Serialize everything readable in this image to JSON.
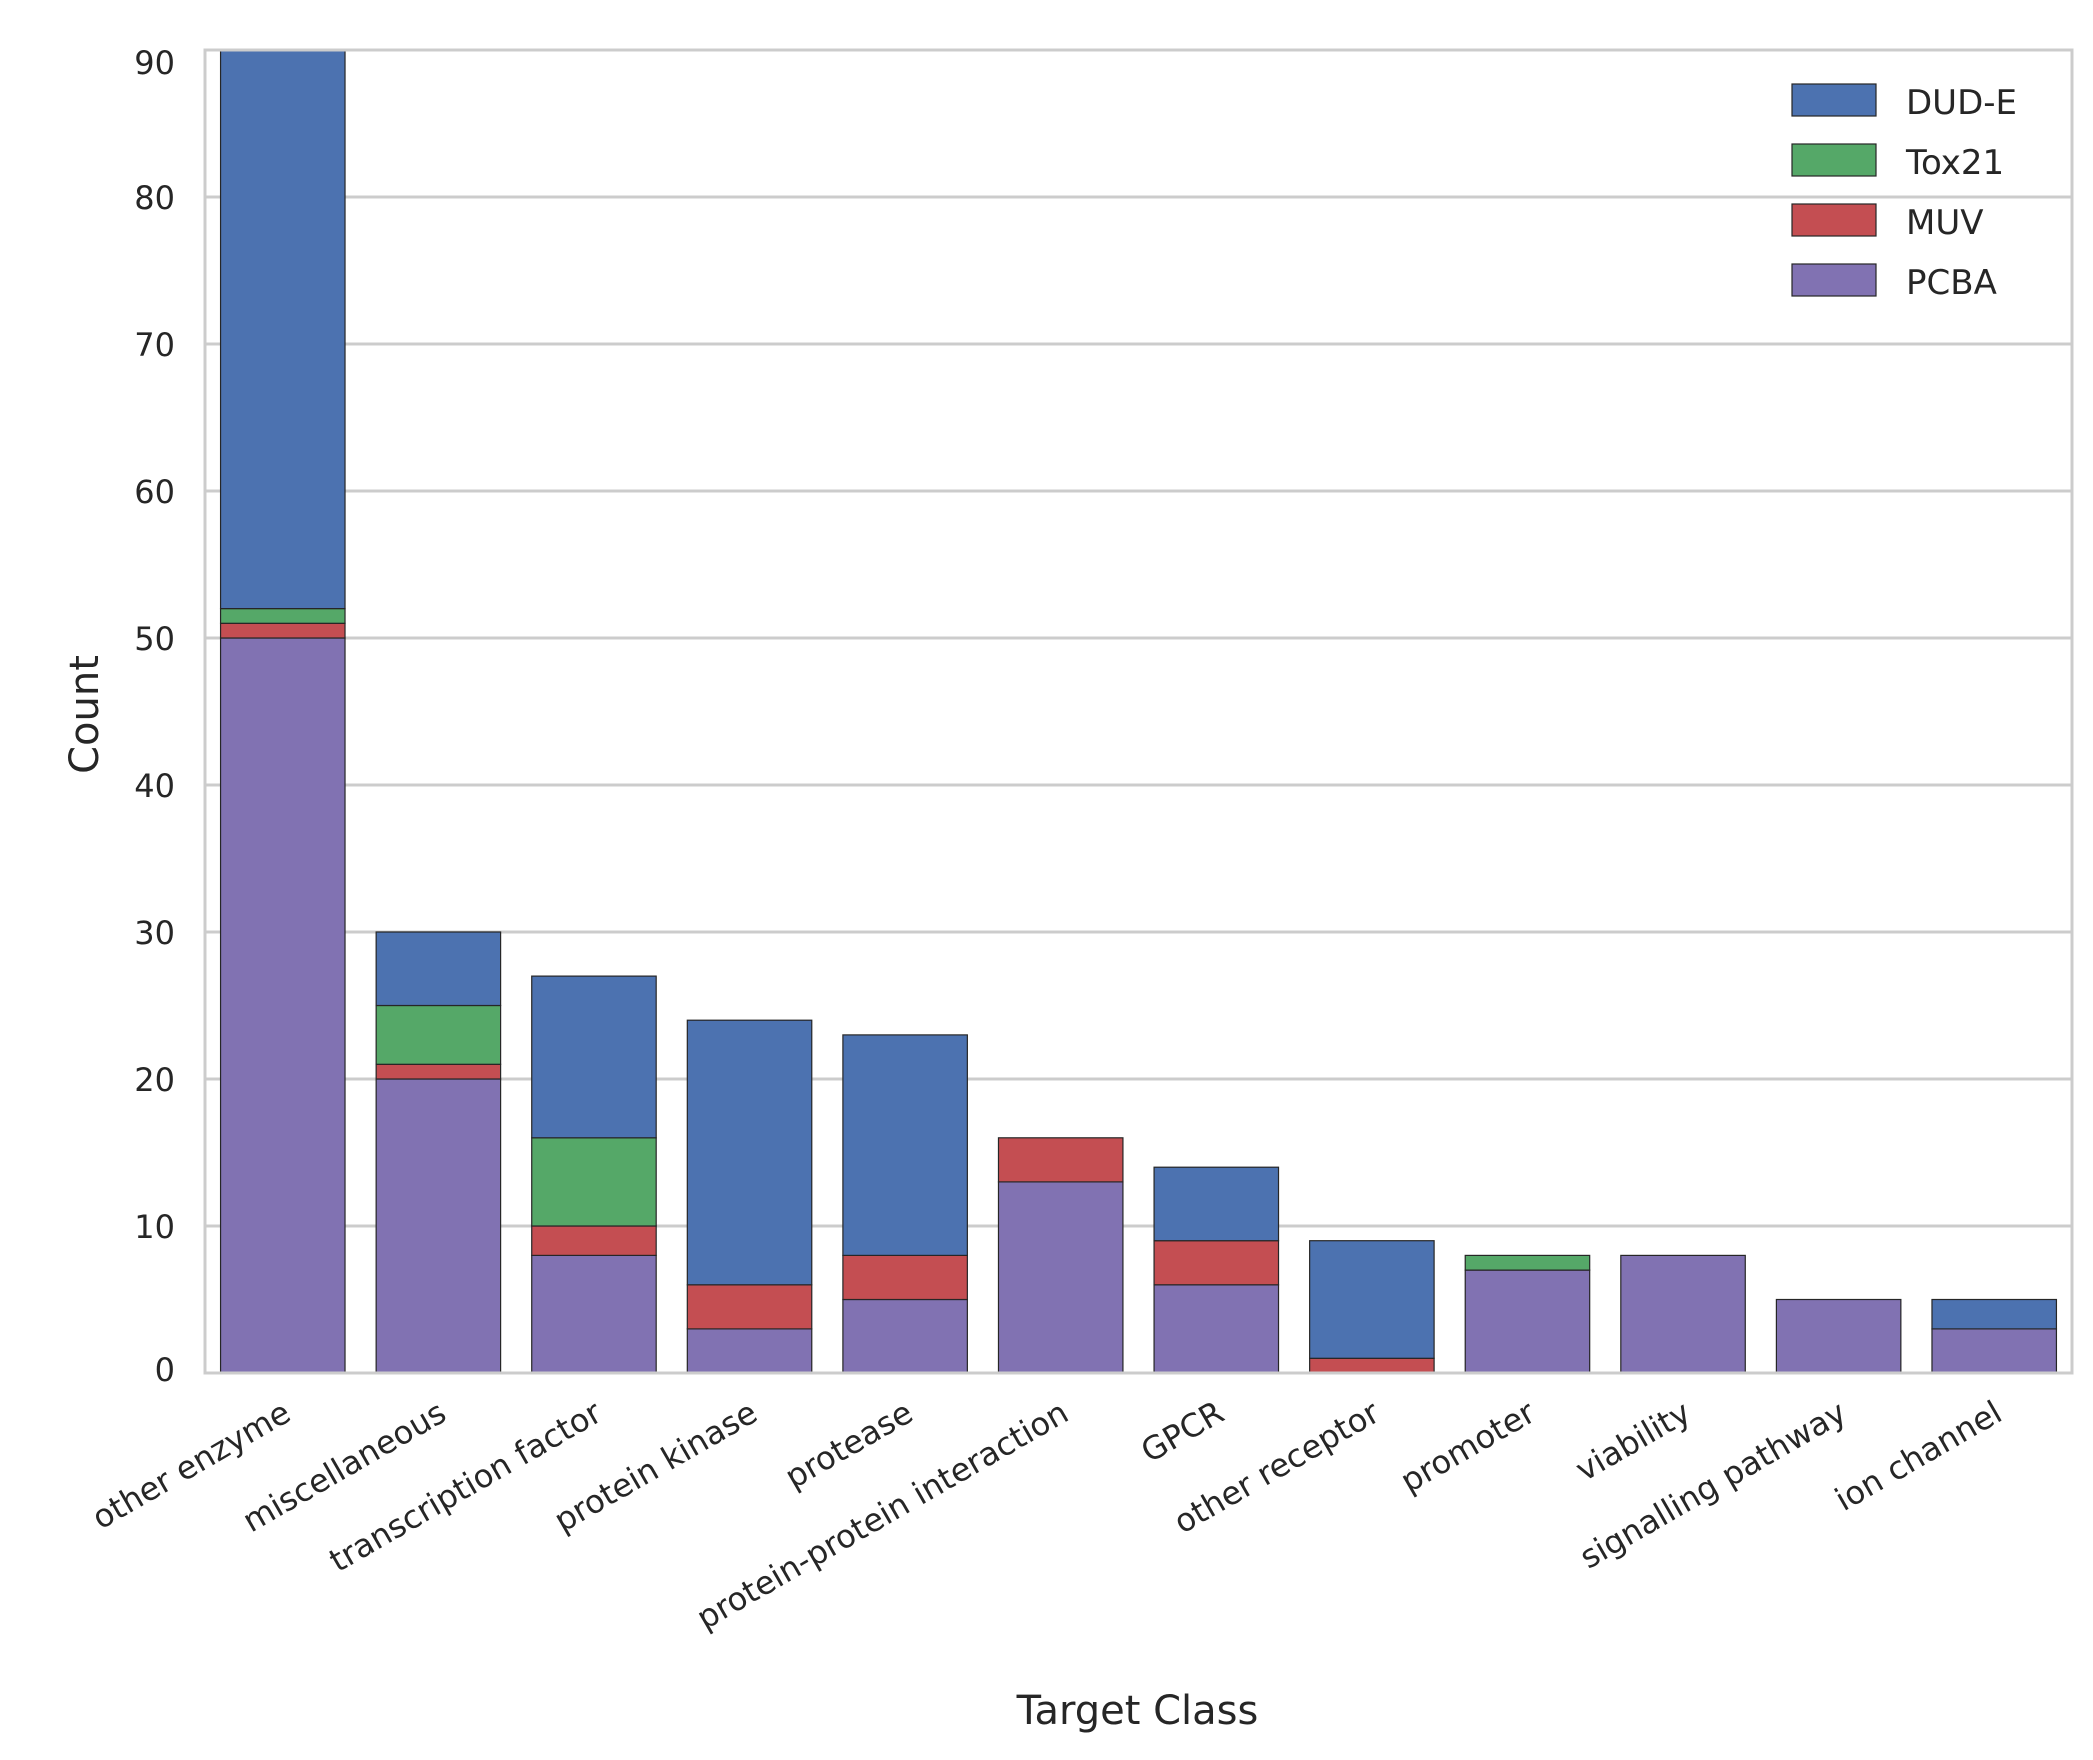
{
  "chart_data": {
    "type": "bar",
    "stacked": true,
    "xlabel": "Target Class",
    "ylabel": "Count",
    "ylim": [
      0,
      90
    ],
    "yticks": [
      0,
      10,
      20,
      30,
      40,
      50,
      60,
      70,
      80,
      90
    ],
    "grid": "horizontal",
    "legend_position": "top-right",
    "categories": [
      "other enzyme",
      "miscellaneous",
      "transcription factor",
      "protein kinase",
      "protease",
      "protein-protein interaction",
      "GPCR",
      "other receptor",
      "promoter",
      "viability",
      "signalling pathway",
      "ion channel"
    ],
    "series": [
      {
        "name": "PCBA",
        "color": "#8172b2",
        "values": [
          50,
          20,
          8,
          3,
          5,
          13,
          6,
          0,
          7,
          8,
          5,
          3
        ]
      },
      {
        "name": "MUV",
        "color": "#c44e52",
        "values": [
          1,
          1,
          2,
          3,
          3,
          3,
          3,
          1,
          0,
          0,
          0,
          0
        ]
      },
      {
        "name": "Tox21",
        "color": "#55a868",
        "values": [
          1,
          4,
          6,
          0,
          0,
          0,
          0,
          0,
          1,
          0,
          0,
          0
        ]
      },
      {
        "name": "DUD-E",
        "color": "#4c72b0",
        "values": [
          38,
          5,
          11,
          18,
          15,
          0,
          5,
          8,
          0,
          0,
          0,
          2
        ]
      }
    ],
    "legend_order": [
      "DUD-E",
      "Tox21",
      "MUV",
      "PCBA"
    ]
  }
}
